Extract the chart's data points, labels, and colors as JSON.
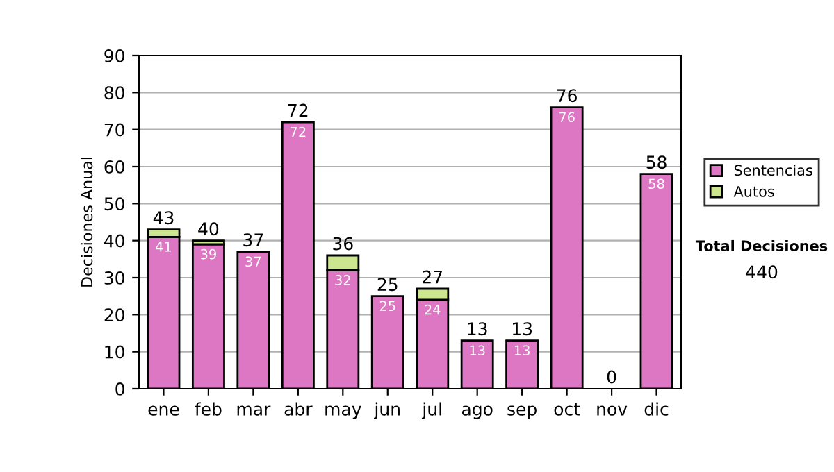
{
  "chart_data": {
    "type": "bar",
    "stacked": true,
    "ylabel": "Decisiones Anual",
    "categories": [
      "ene",
      "feb",
      "mar",
      "abr",
      "may",
      "jun",
      "jul",
      "ago",
      "sep",
      "oct",
      "nov",
      "dic"
    ],
    "series": [
      {
        "name": "Sentencias",
        "color": "#dd77c4",
        "values": [
          41,
          39,
          37,
          72,
          32,
          25,
          24,
          13,
          13,
          76,
          0,
          58
        ],
        "value_labels": [
          "41",
          "39",
          "37",
          "72",
          "32",
          "25",
          "24",
          "13",
          "13",
          "76",
          null,
          "58"
        ]
      },
      {
        "name": "Autos",
        "color": "#cce68f",
        "values": [
          2,
          1,
          0,
          0,
          4,
          0,
          3,
          0,
          0,
          0,
          0,
          0
        ]
      }
    ],
    "totals": [
      "43",
      "40",
      "37",
      "72",
      "36",
      "25",
      "27",
      "13",
      "13",
      "76",
      "0",
      "58"
    ],
    "ylim": [
      0,
      90
    ],
    "yticks": [
      0,
      10,
      20,
      30,
      40,
      50,
      60,
      70,
      80,
      90
    ],
    "grid": "y",
    "legend": "right",
    "annotations": [
      "Total Decisiones",
      "440"
    ]
  }
}
